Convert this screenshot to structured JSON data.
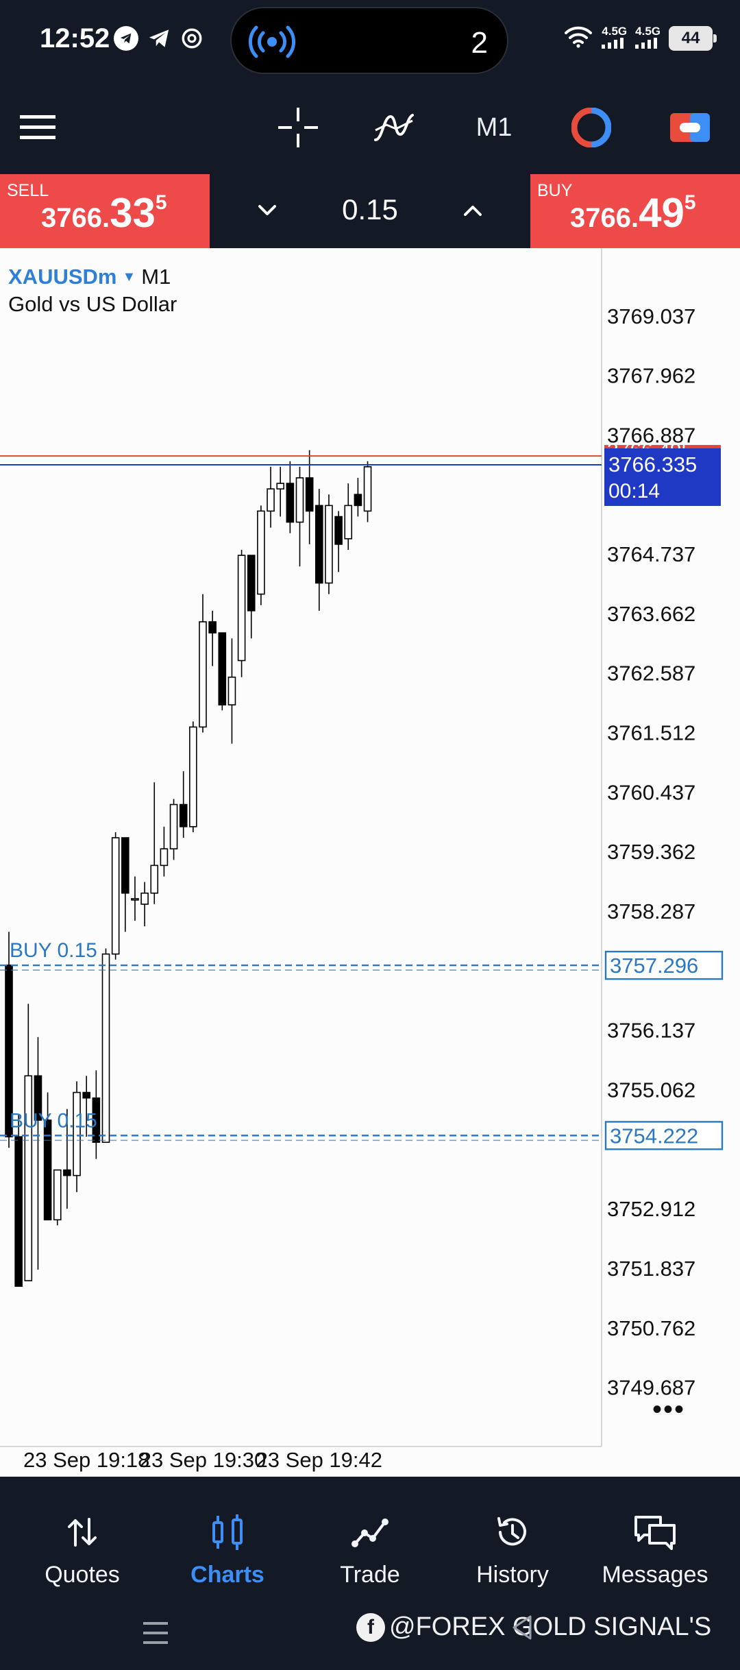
{
  "status_bar": {
    "time": "12:52",
    "apps": [
      "telegram-icon",
      "send-icon",
      "threads-icon"
    ],
    "island_count": "2",
    "network": [
      "4.5G",
      "4.5G"
    ],
    "battery": "44"
  },
  "toolbar": {
    "timeframe": "M1"
  },
  "trade": {
    "sell_label": "SELL",
    "sell_price_small": "3766.",
    "sell_price_big": "33",
    "sell_price_sup": "5",
    "buy_label": "BUY",
    "buy_price_small": "3766.",
    "buy_price_big": "49",
    "buy_price_sup": "5",
    "lot": "0.15"
  },
  "chart_info": {
    "symbol": "XAUUSDm",
    "caret": "▼",
    "timeframe": "M1",
    "description": "Gold vs US Dollar"
  },
  "chart_data": {
    "type": "candlestick",
    "ylim": [
      3749.2,
      3770.0
    ],
    "price_ticks": [
      "3769.037",
      "3767.962",
      "3766.887",
      "3764.737",
      "3763.662",
      "3762.587",
      "3761.512",
      "3760.437",
      "3759.362",
      "3758.287",
      "3756.137",
      "3755.062",
      "3752.912",
      "3751.837",
      "3750.762",
      "3749.687"
    ],
    "time_labels": [
      {
        "text": "23 Sep 19:18",
        "index": 8
      },
      {
        "text": "23 Sep 19:30",
        "index": 20
      },
      {
        "text": "23 Sep 19:42",
        "index": 32
      }
    ],
    "candles": [
      {
        "o": 3757.3,
        "h": 3757.9,
        "l": 3754.0,
        "c": 3754.2
      },
      {
        "o": 3754.2,
        "h": 3754.6,
        "l": 3751.5,
        "c": 3751.5
      },
      {
        "o": 3751.6,
        "h": 3756.6,
        "l": 3751.6,
        "c": 3755.3
      },
      {
        "o": 3755.3,
        "h": 3756.0,
        "l": 3751.8,
        "c": 3754.5
      },
      {
        "o": 3754.5,
        "h": 3755.0,
        "l": 3752.7,
        "c": 3752.7
      },
      {
        "o": 3752.7,
        "h": 3753.6,
        "l": 3752.6,
        "c": 3753.6
      },
      {
        "o": 3753.6,
        "h": 3754.7,
        "l": 3752.9,
        "c": 3753.5
      },
      {
        "o": 3753.5,
        "h": 3755.2,
        "l": 3753.2,
        "c": 3755.0
      },
      {
        "o": 3755.0,
        "h": 3755.3,
        "l": 3754.2,
        "c": 3754.9
      },
      {
        "o": 3754.9,
        "h": 3755.4,
        "l": 3753.8,
        "c": 3754.1
      },
      {
        "o": 3754.1,
        "h": 3757.6,
        "l": 3754.1,
        "c": 3757.5
      },
      {
        "o": 3757.5,
        "h": 3759.7,
        "l": 3757.4,
        "c": 3759.6
      },
      {
        "o": 3759.6,
        "h": 3759.6,
        "l": 3757.9,
        "c": 3758.6
      },
      {
        "o": 3758.5,
        "h": 3758.9,
        "l": 3758.1,
        "c": 3758.5
      },
      {
        "o": 3758.4,
        "h": 3758.8,
        "l": 3758.0,
        "c": 3758.6
      },
      {
        "o": 3758.6,
        "h": 3760.6,
        "l": 3758.4,
        "c": 3759.1
      },
      {
        "o": 3759.1,
        "h": 3759.8,
        "l": 3758.9,
        "c": 3759.4
      },
      {
        "o": 3759.4,
        "h": 3760.3,
        "l": 3759.2,
        "c": 3760.2
      },
      {
        "o": 3760.2,
        "h": 3760.8,
        "l": 3759.6,
        "c": 3759.8
      },
      {
        "o": 3759.8,
        "h": 3761.7,
        "l": 3759.7,
        "c": 3761.6
      },
      {
        "o": 3761.6,
        "h": 3764.0,
        "l": 3761.5,
        "c": 3763.5
      },
      {
        "o": 3763.5,
        "h": 3763.7,
        "l": 3762.7,
        "c": 3763.3
      },
      {
        "o": 3763.3,
        "h": 3763.3,
        "l": 3761.9,
        "c": 3762.0
      },
      {
        "o": 3762.0,
        "h": 3763.2,
        "l": 3761.3,
        "c": 3762.5
      },
      {
        "o": 3762.8,
        "h": 3764.8,
        "l": 3762.5,
        "c": 3764.7
      },
      {
        "o": 3764.7,
        "h": 3764.7,
        "l": 3763.2,
        "c": 3763.7
      },
      {
        "o": 3764.0,
        "h": 3765.6,
        "l": 3763.8,
        "c": 3765.5
      },
      {
        "o": 3765.5,
        "h": 3766.3,
        "l": 3765.2,
        "c": 3765.9
      },
      {
        "o": 3765.9,
        "h": 3766.3,
        "l": 3765.4,
        "c": 3766.0
      },
      {
        "o": 3766.0,
        "h": 3766.4,
        "l": 3765.1,
        "c": 3765.3
      },
      {
        "o": 3765.3,
        "h": 3766.3,
        "l": 3764.5,
        "c": 3766.1
      },
      {
        "o": 3766.1,
        "h": 3766.6,
        "l": 3764.9,
        "c": 3765.5
      },
      {
        "o": 3765.6,
        "h": 3765.9,
        "l": 3763.7,
        "c": 3764.2
      },
      {
        "o": 3764.2,
        "h": 3765.8,
        "l": 3764.0,
        "c": 3765.6
      },
      {
        "o": 3765.4,
        "h": 3765.5,
        "l": 3764.4,
        "c": 3764.9
      },
      {
        "o": 3765.0,
        "h": 3766.0,
        "l": 3764.8,
        "c": 3765.6
      },
      {
        "o": 3765.8,
        "h": 3766.1,
        "l": 3765.4,
        "c": 3765.6
      },
      {
        "o": 3765.5,
        "h": 3766.4,
        "l": 3765.3,
        "c": 3766.3
      }
    ],
    "bid_line": 3766.335,
    "ask_line": 3766.495,
    "bid_label": "3766.335",
    "ask_label": "3766.495",
    "bid_timer": "00:14",
    "positions": [
      {
        "label": "BUY 0.15",
        "price": 3757.296,
        "price_label": "3757.296"
      },
      {
        "label": "BUY 0.15",
        "price": 3754.222,
        "price_label": "3754.222"
      }
    ],
    "colors": {
      "bull": "#ffffff",
      "bear": "#000000",
      "bid": "#1f39c4",
      "ask": "#d9483b",
      "position": "#2b78c2"
    }
  },
  "nav": {
    "items": [
      {
        "label": "Quotes",
        "icon": "quotes-icon"
      },
      {
        "label": "Charts",
        "icon": "charts-icon",
        "active": true
      },
      {
        "label": "Trade",
        "icon": "trade-icon"
      },
      {
        "label": "History",
        "icon": "history-icon"
      },
      {
        "label": "Messages",
        "icon": "messages-icon"
      }
    ]
  },
  "watermark": "@FOREX GOLD SIGNAL'S"
}
